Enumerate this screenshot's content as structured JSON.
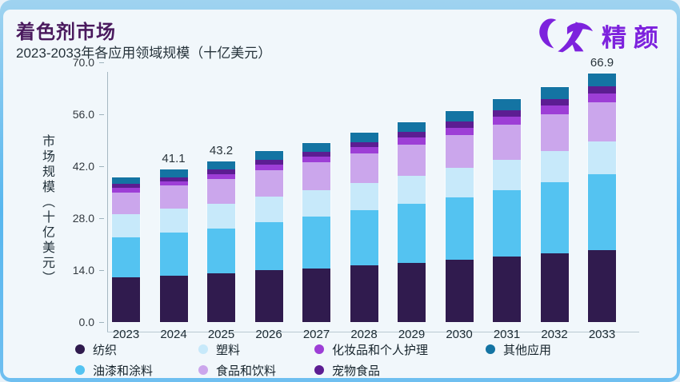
{
  "header": {
    "title": "着色剂市场",
    "subtitle": "2023-2033年各应用领域规模（十亿美元）",
    "brand": "精颜",
    "brand_color": "#7d22dd"
  },
  "chart_data": {
    "type": "bar",
    "stacked": true,
    "title": "着色剂市场",
    "subtitle": "2023-2033年各应用领域规模（十亿美元）",
    "xlabel": "",
    "ylabel": "市场规模（十亿美元）",
    "ylim": [
      0,
      70
    ],
    "yticks": [
      0,
      14,
      28,
      42,
      56,
      70
    ],
    "ytick_labels": [
      "0.0",
      "14.0",
      "28.0",
      "42.0",
      "56.0",
      "70.0"
    ],
    "grid": false,
    "legend_position": "bottom",
    "categories": [
      "2023",
      "2024",
      "2025",
      "2026",
      "2027",
      "2028",
      "2029",
      "2030",
      "2031",
      "2032",
      "2033"
    ],
    "series": [
      {
        "name": "纺织",
        "color": "#301b4e",
        "values": [
          12.0,
          12.6,
          13.1,
          13.9,
          14.5,
          15.3,
          16.0,
          16.8,
          17.6,
          18.5,
          19.4
        ]
      },
      {
        "name": "油漆和涂料",
        "color": "#54c3f1",
        "values": [
          10.8,
          11.5,
          12.2,
          13.1,
          13.9,
          14.8,
          15.8,
          16.9,
          18.0,
          19.1,
          20.4
        ]
      },
      {
        "name": "塑料",
        "color": "#c7e9fa",
        "values": [
          6.2,
          6.4,
          6.6,
          6.9,
          7.1,
          7.4,
          7.7,
          7.9,
          8.2,
          8.5,
          8.8
        ]
      },
      {
        "name": "食品和饮料",
        "color": "#cba6ec",
        "values": [
          6.0,
          6.3,
          6.7,
          7.1,
          7.5,
          8.0,
          8.4,
          8.9,
          9.5,
          10.0,
          10.6
        ]
      },
      {
        "name": "化妆品和个人护理",
        "color": "#9d3ed6",
        "values": [
          1.1,
          1.2,
          1.3,
          1.4,
          1.5,
          1.6,
          1.8,
          1.9,
          2.1,
          2.2,
          2.4
        ]
      },
      {
        "name": "宠物食品",
        "color": "#5c1d92",
        "values": [
          1.1,
          1.1,
          1.2,
          1.3,
          1.4,
          1.4,
          1.5,
          1.6,
          1.7,
          1.8,
          1.9
        ]
      },
      {
        "name": "其他应用",
        "color": "#1474a3",
        "values": [
          1.9,
          2.0,
          2.1,
          2.3,
          2.4,
          2.5,
          2.7,
          2.9,
          3.0,
          3.2,
          3.4
        ]
      }
    ],
    "total_labels": {
      "2024": "41.1",
      "2025": "43.2",
      "2033": "66.9"
    }
  }
}
